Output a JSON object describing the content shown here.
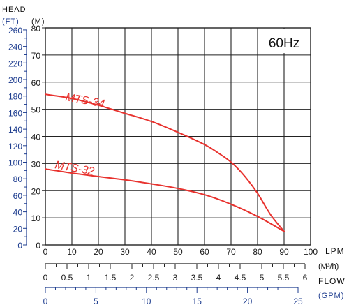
{
  "chart_data": {
    "type": "line",
    "frequency_badge": "60Hz",
    "head_label": "HEAD",
    "ft_unit_label": "(FT)",
    "m_unit_label": "(M)",
    "lpm_unit_label": "LPM",
    "m3h_unit_label": "(M³/h)",
    "flow_label": "FLOW",
    "gpm_unit_label": "(GPM)",
    "xlim": [
      0,
      100
    ],
    "ylim": [
      0,
      80
    ],
    "grid": true,
    "y_ticks_m": [
      "0",
      "10",
      "20",
      "30",
      "40",
      "50",
      "60",
      "70",
      "80"
    ],
    "y_ticks_ft": [
      "0",
      "20",
      "40",
      "60",
      "80",
      "100",
      "120",
      "140",
      "160",
      "180",
      "200",
      "220",
      "240",
      "260"
    ],
    "x_ticks_lpm": [
      "0",
      "10",
      "20",
      "30",
      "40",
      "50",
      "60",
      "70",
      "80",
      "90",
      "100"
    ],
    "x_ticks_m3h": [
      "0",
      "0.5",
      "1",
      "1.5",
      "2",
      "2.5",
      "3",
      "3.5",
      "4",
      "4.5",
      "5",
      "5.5",
      "6"
    ],
    "x_ticks_gpm": [
      "0",
      "5",
      "10",
      "15",
      "20",
      "25"
    ],
    "colors": {
      "curve": "#e8322e",
      "grid": "#222222",
      "axis_blue": "#1e3d8f",
      "text": "#1a1a1a"
    },
    "series": [
      {
        "name": "MTS-34",
        "x": [
          0,
          10,
          20,
          30,
          40,
          50,
          60,
          65,
          70,
          75,
          80,
          85,
          90
        ],
        "y": [
          55.5,
          54,
          51.5,
          48.5,
          45.5,
          41.5,
          37,
          34,
          30.5,
          25.5,
          19,
          11,
          5
        ]
      },
      {
        "name": "MTS-32",
        "x": [
          0,
          10,
          20,
          30,
          40,
          50,
          60,
          70,
          80,
          90
        ],
        "y": [
          28,
          26.5,
          25.2,
          24,
          22.5,
          20.8,
          18.5,
          15,
          10.5,
          5
        ]
      }
    ]
  }
}
